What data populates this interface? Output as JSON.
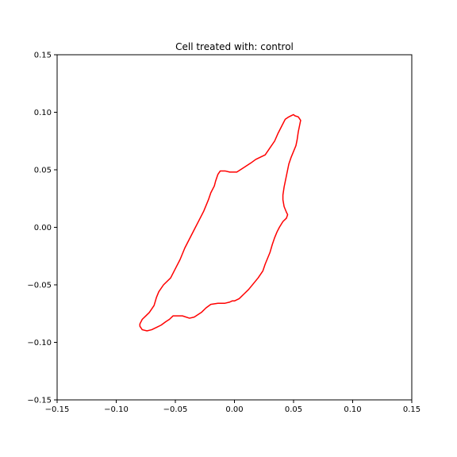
{
  "chart_data": {
    "type": "line",
    "title": "Cell treated with: control",
    "xlabel": "",
    "ylabel": "",
    "xlim": [
      -0.15,
      0.15
    ],
    "ylim": [
      -0.15,
      0.15
    ],
    "grid": false,
    "line_color": "#ff0000",
    "xticks": [
      {
        "value": -0.15,
        "label": "−0.15"
      },
      {
        "value": -0.1,
        "label": "−0.10"
      },
      {
        "value": -0.05,
        "label": "−0.05"
      },
      {
        "value": 0.0,
        "label": "0.00"
      },
      {
        "value": 0.05,
        "label": "0.05"
      },
      {
        "value": 0.1,
        "label": "0.10"
      },
      {
        "value": 0.15,
        "label": "0.15"
      }
    ],
    "yticks": [
      {
        "value": 0.15,
        "label": "0.15"
      },
      {
        "value": 0.1,
        "label": "0.10"
      },
      {
        "value": 0.05,
        "label": "0.05"
      },
      {
        "value": 0.0,
        "label": "0.00"
      },
      {
        "value": -0.05,
        "label": "−0.05"
      },
      {
        "value": -0.1,
        "label": "−0.10"
      },
      {
        "value": -0.15,
        "label": "−0.15"
      }
    ],
    "series": [
      {
        "closed": true,
        "x": [
          0.051,
          0.054,
          0.056,
          0.055,
          0.054,
          0.053,
          0.052,
          0.05,
          0.048,
          0.046,
          0.045,
          0.044,
          0.043,
          0.042,
          0.041,
          0.041,
          0.042,
          0.044,
          0.045,
          0.044,
          0.041,
          0.038,
          0.036,
          0.034,
          0.032,
          0.03,
          0.028,
          0.026,
          0.024,
          0.02,
          0.016,
          0.012,
          0.008,
          0.004,
          0.0,
          -0.002,
          -0.004,
          -0.008,
          -0.014,
          -0.02,
          -0.024,
          -0.028,
          -0.034,
          -0.038,
          -0.044,
          -0.048,
          -0.052,
          -0.055,
          -0.058,
          -0.062,
          -0.066,
          -0.07,
          -0.074,
          -0.078,
          -0.08,
          -0.08,
          -0.078,
          -0.075,
          -0.072,
          -0.068,
          -0.066,
          -0.064,
          -0.06,
          -0.054,
          -0.05,
          -0.046,
          -0.042,
          -0.038,
          -0.034,
          -0.03,
          -0.026,
          -0.022,
          -0.02,
          -0.017,
          -0.016,
          -0.014,
          -0.012,
          -0.008,
          -0.004,
          0.002,
          0.008,
          0.014,
          0.018,
          0.022,
          0.026,
          0.03,
          0.034,
          0.037,
          0.04,
          0.043,
          0.046,
          0.048,
          0.05,
          0.051
        ],
        "y": [
          0.097,
          0.096,
          0.093,
          0.088,
          0.083,
          0.076,
          0.071,
          0.066,
          0.061,
          0.055,
          0.05,
          0.045,
          0.04,
          0.035,
          0.028,
          0.024,
          0.018,
          0.013,
          0.011,
          0.008,
          0.005,
          0.0,
          -0.004,
          -0.009,
          -0.015,
          -0.022,
          -0.027,
          -0.032,
          -0.038,
          -0.044,
          -0.049,
          -0.054,
          -0.058,
          -0.062,
          -0.064,
          -0.064,
          -0.065,
          -0.066,
          -0.066,
          -0.067,
          -0.07,
          -0.074,
          -0.078,
          -0.079,
          -0.077,
          -0.077,
          -0.077,
          -0.08,
          -0.082,
          -0.085,
          -0.087,
          -0.089,
          -0.09,
          -0.089,
          -0.086,
          -0.084,
          -0.08,
          -0.077,
          -0.074,
          -0.068,
          -0.061,
          -0.056,
          -0.05,
          -0.044,
          -0.036,
          -0.028,
          -0.018,
          -0.01,
          -0.002,
          0.006,
          0.014,
          0.024,
          0.03,
          0.036,
          0.04,
          0.046,
          0.049,
          0.049,
          0.048,
          0.048,
          0.052,
          0.056,
          0.059,
          0.061,
          0.063,
          0.069,
          0.075,
          0.082,
          0.088,
          0.094,
          0.096,
          0.097,
          0.098,
          0.097
        ]
      }
    ]
  }
}
